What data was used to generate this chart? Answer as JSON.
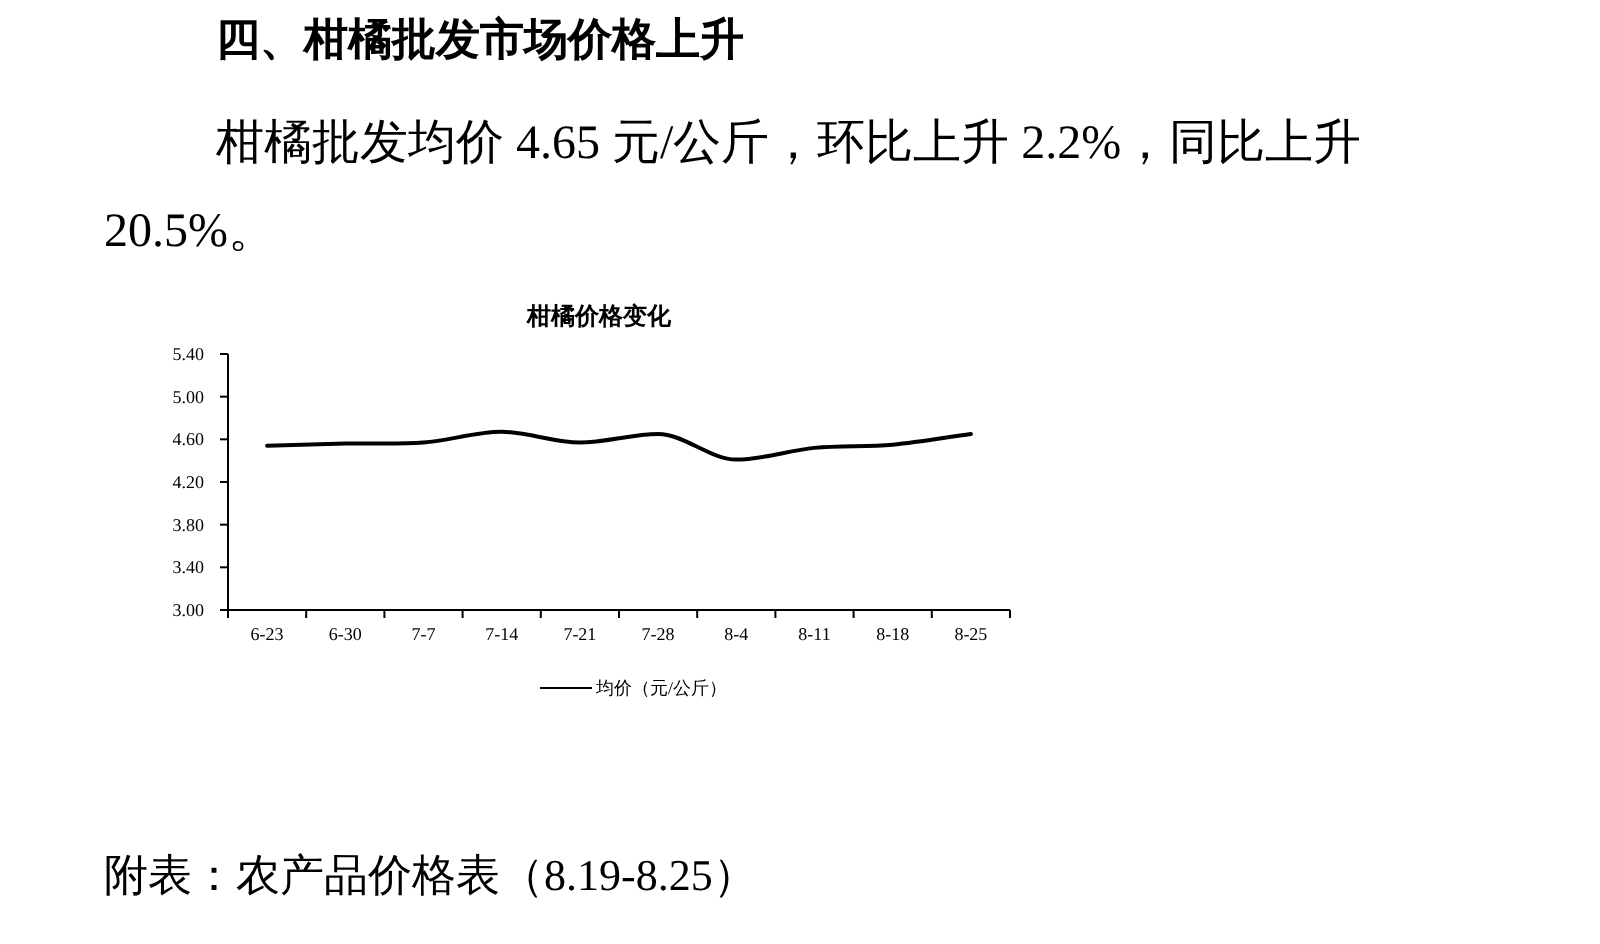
{
  "chart_data": {
    "type": "line",
    "title": "柑橘价格变化",
    "annotations": [
      "四、柑橘批发市场价格上升",
      "柑橘批发均价 4.65 元/公斤，环比上升 2.2%，同比上升 20.5%。",
      "附表：农产品价格表（8.19-8.25）"
    ],
    "categories": [
      "6-23",
      "6-30",
      "7-7",
      "7-14",
      "7-21",
      "7-28",
      "8-4",
      "8-11",
      "8-18",
      "8-25"
    ],
    "series": [
      {
        "name": "均价（元/公斤）",
        "color": "#000000",
        "values": [
          4.54,
          4.56,
          4.57,
          4.67,
          4.57,
          4.65,
          4.41,
          4.52,
          4.55,
          4.65
        ]
      }
    ],
    "ylim": [
      3.0,
      5.4
    ],
    "yticks": [
      {
        "value": 3.0,
        "label": "3.00"
      },
      {
        "value": 3.4,
        "label": "3.40"
      },
      {
        "value": 3.8,
        "label": "3.80"
      },
      {
        "value": 4.2,
        "label": "4.20"
      },
      {
        "value": 4.6,
        "label": "4.60"
      },
      {
        "value": 5.0,
        "label": "5.00"
      },
      {
        "value": 5.4,
        "label": "5.40"
      }
    ],
    "grid": false,
    "legend": "bottom",
    "marker": "none",
    "line_style": "solid"
  }
}
